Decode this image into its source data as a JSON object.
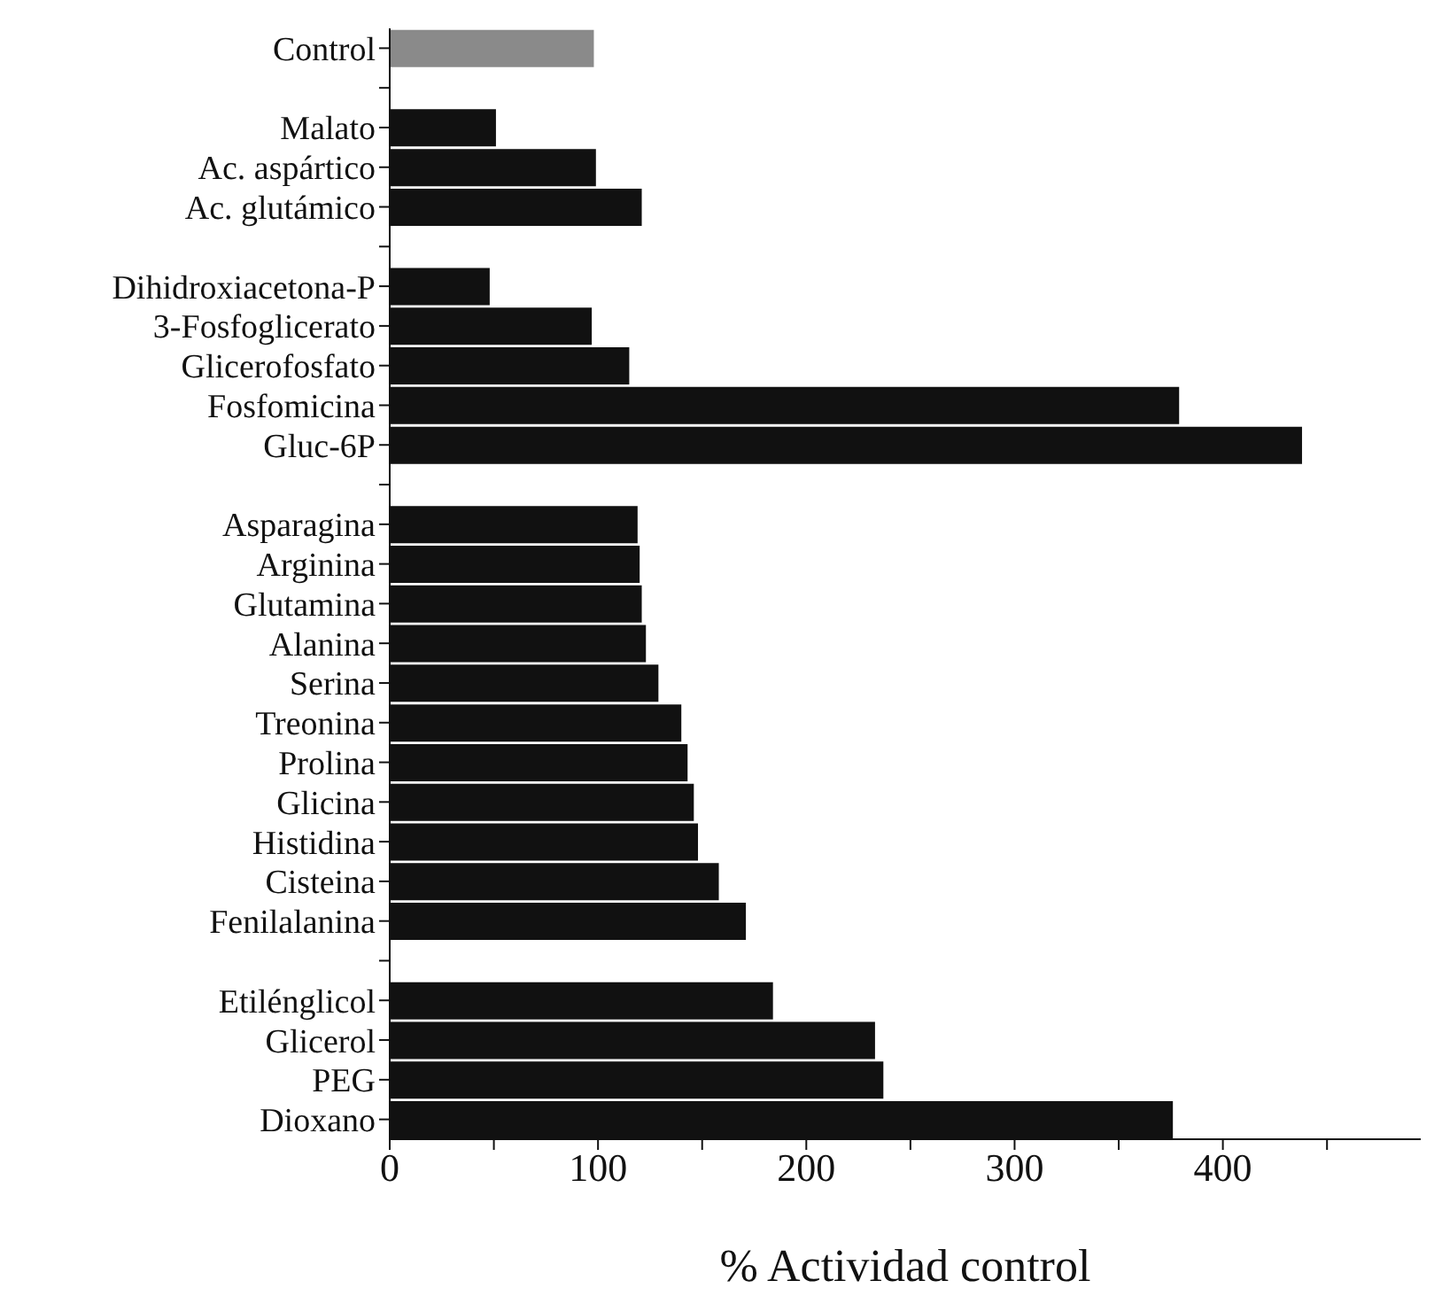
{
  "chart_data": {
    "type": "bar",
    "orientation": "horizontal",
    "xlabel": "% Actividad control",
    "categories": [
      "Control",
      null,
      "Malato",
      "Ac. aspártico",
      "Ac. glutámico",
      null,
      "Dihidroxiacetona-P",
      "3-Fosfoglicerato",
      "Glicerofosfato",
      "Fosfomicina",
      "Gluc-6P",
      null,
      "Asparagina",
      "Arginina",
      "Glutamina",
      "Alanina",
      "Serina",
      "Treonina",
      "Prolina",
      "Glicina",
      "Histidina",
      "Cisteina",
      "Fenilalanina",
      null,
      "Etilénglicol",
      "Glicerol",
      "PEG",
      "Dioxano"
    ],
    "values": [
      98,
      null,
      51,
      99,
      121,
      null,
      48,
      97,
      115,
      379,
      438,
      null,
      119,
      120,
      121,
      123,
      129,
      140,
      143,
      146,
      148,
      158,
      171,
      null,
      184,
      233,
      237,
      376
    ],
    "colors": [
      "#8a8a8a",
      null,
      "#111111",
      "#111111",
      "#111111",
      null,
      "#111111",
      "#111111",
      "#111111",
      "#111111",
      "#111111",
      null,
      "#111111",
      "#111111",
      "#111111",
      "#111111",
      "#111111",
      "#111111",
      "#111111",
      "#111111",
      "#111111",
      "#111111",
      "#111111",
      null,
      "#111111",
      "#111111",
      "#111111",
      "#111111"
    ],
    "xlim": [
      0,
      495
    ],
    "xticks": [
      0,
      {
        "value": 50,
        "label": null
      },
      100,
      {
        "value": 150,
        "label": null
      },
      200,
      {
        "value": 250,
        "label": null
      },
      300,
      {
        "value": 350,
        "label": null
      },
      400,
      {
        "value": 450,
        "label": null
      }
    ],
    "grid": false,
    "legend": false
  }
}
